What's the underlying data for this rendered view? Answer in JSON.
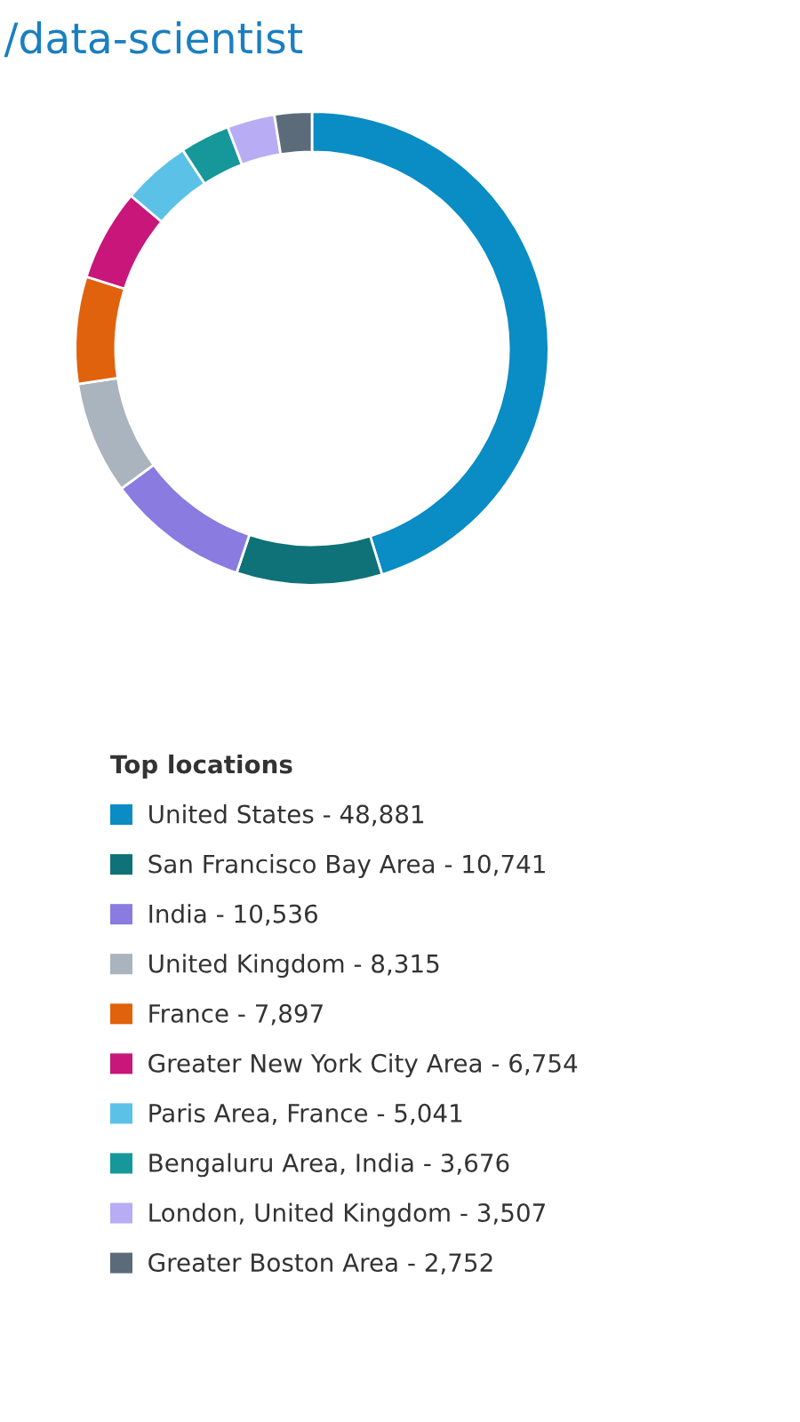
{
  "chart_data": {
    "type": "donut",
    "title": "/data-scientist",
    "legend_title": "Top locations",
    "legend": "bottom",
    "categories": [
      "United States",
      "San Francisco Bay Area",
      "India",
      "United Kingdom",
      "France",
      "Greater New York City Area",
      "Paris Area, France",
      "Bengaluru Area, India",
      "London, United Kingdom",
      "Greater Boston Area"
    ],
    "value_labels": [
      "48,881",
      "10,741",
      "10,536",
      "8,315",
      "7,897",
      "6,754",
      "5,041",
      "3,676",
      "3,507",
      "2,752"
    ],
    "values": [
      48881,
      10741,
      10536,
      8315,
      7897,
      6754,
      5041,
      3676,
      3507,
      2752
    ],
    "colors": [
      "#0a8cc4",
      "#0e7278",
      "#8a7be0",
      "#aab4be",
      "#e0620c",
      "#c8167a",
      "#5cc1e6",
      "#16989a",
      "#b8acf4",
      "#5b6b7a"
    ]
  }
}
